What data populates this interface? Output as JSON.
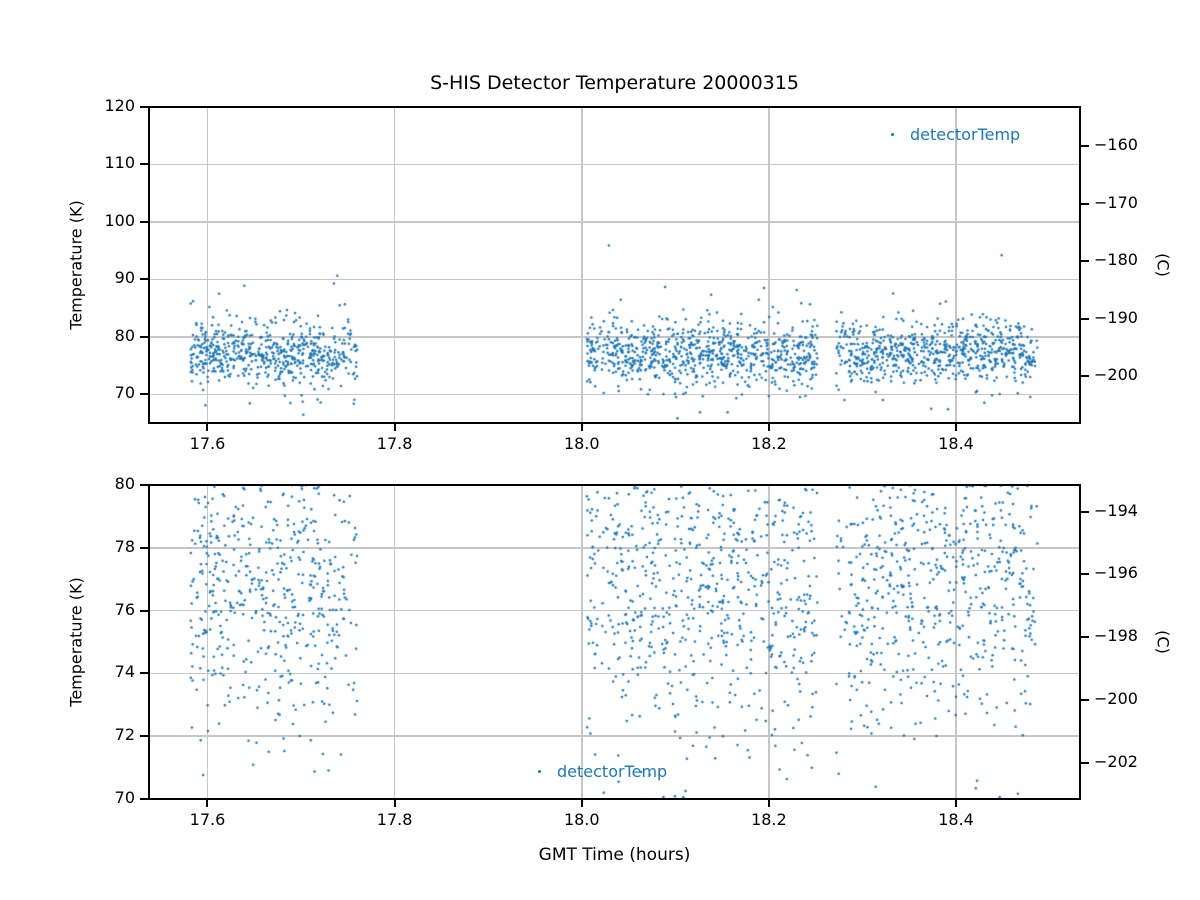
{
  "figure": {
    "background": "#ffffff",
    "accent_color": "#1f77b4",
    "grid_color": "#c6c6c6",
    "spine_color": "#000000"
  },
  "chart_data": {
    "type": "scatter",
    "title": "S-HIS Detector Temperature 20000315",
    "xlabel": "GMT Time (hours)",
    "xlim_hours": [
      17.5375,
      18.5325
    ],
    "xticks": [
      17.6,
      17.8,
      18.0,
      18.2,
      18.4
    ],
    "xtick_labels": [
      "17.6",
      "17.8",
      "18.0",
      "18.2",
      "18.4"
    ],
    "celsius_offset": 273.15,
    "grid": true,
    "series": [
      {
        "name": "detectorTemp",
        "color": "#1f77b4",
        "marker": "point",
        "segments": [
          {
            "t_start": 17.582,
            "t_end": 17.76,
            "n_points": 620
          },
          {
            "t_start": 18.005,
            "t_end": 18.252,
            "n_points": 830
          },
          {
            "t_start": 18.272,
            "t_end": 18.487,
            "n_points": 720
          }
        ],
        "temperature_stats_K": {
          "mean": 77.3,
          "core_sigma": 2.6,
          "tail_sigma": 5.5,
          "tail_fraction": 0.1,
          "observed_min": 66,
          "observed_max": 89
        },
        "render_seed": 7
      }
    ],
    "subplots": [
      {
        "id": "top",
        "ylabel_left": "Temperature (K)",
        "ylabel_right": "(C)",
        "ylim_K": [
          65,
          120
        ],
        "yticks_K": [
          70,
          80,
          90,
          100,
          110,
          120
        ],
        "ytick_labels_K": [
          "70",
          "80",
          "90",
          "100",
          "110",
          "120"
        ],
        "yticks_C": [
          -160,
          -170,
          -180,
          -190,
          -200
        ],
        "ytick_labels_C": [
          "−160",
          "−170",
          "−180",
          "−190",
          "−200"
        ],
        "show_xlabel": false,
        "legend": {
          "label": "detectorTemp",
          "location": "upper right"
        }
      },
      {
        "id": "bottom",
        "ylabel_left": "Temperature (K)",
        "ylabel_right": "(C)",
        "ylim_K": [
          70,
          80
        ],
        "yticks_K": [
          70,
          72,
          74,
          76,
          78,
          80
        ],
        "ytick_labels_K": [
          "70",
          "72",
          "74",
          "76",
          "78",
          "80"
        ],
        "yticks_C": [
          -194,
          -196,
          -198,
          -200,
          -202
        ],
        "ytick_labels_C": [
          "−194",
          "−196",
          "−198",
          "−200",
          "−202"
        ],
        "show_xlabel": true,
        "legend": {
          "label": "detectorTemp",
          "location": "lower center"
        }
      }
    ]
  }
}
